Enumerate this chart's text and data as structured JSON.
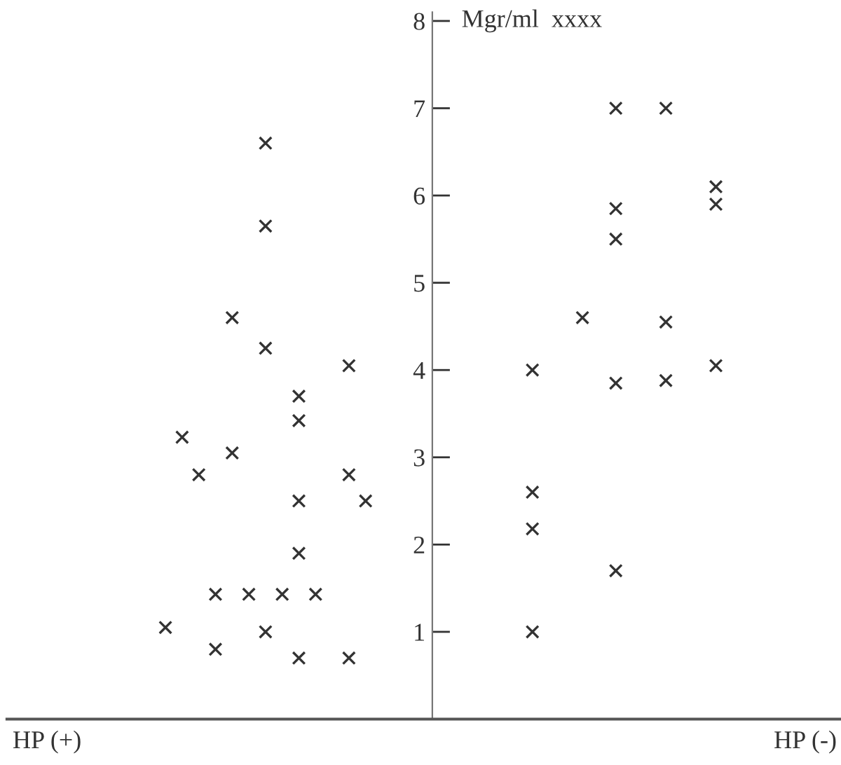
{
  "chart_data": {
    "type": "scatter",
    "ylabel": "Mgr/ml  xxxx",
    "annotations": [
      "HP (+)",
      "HP (-)"
    ],
    "categories": [
      null,
      null,
      null,
      null,
      null,
      null,
      null,
      null,
      null,
      null,
      null,
      null,
      null,
      null,
      null,
      null,
      null,
      null,
      null,
      null,
      null,
      null,
      null,
      null,
      null,
      null,
      null,
      null,
      null,
      null,
      null,
      null,
      null,
      null,
      null,
      null,
      null,
      null,
      null,
      null,
      null,
      null,
      null,
      null,
      null,
      null,
      null,
      null,
      null,
      null
    ],
    "series": [
      {
        "color": "#333333",
        "values": [
          null,
          null,
          null,
          null,
          null,
          null,
          null,
          null,
          null,
          1.05,
          3.23,
          2.8,
          1.43,
          4.6,
          1.43,
          6.6,
          1.43,
          3.7,
          1.43,
          null,
          4.05,
          2.5,
          null,
          null,
          null,
          null,
          null,
          null,
          null,
          null,
          null,
          4.0,
          null,
          null,
          4.6,
          null,
          7.0,
          null,
          null,
          7.0,
          null,
          null,
          6.1,
          null,
          null,
          null,
          null,
          null,
          null,
          null
        ]
      },
      {
        "color": "#333333",
        "values": [
          null,
          null,
          null,
          null,
          null,
          null,
          null,
          null,
          null,
          null,
          null,
          null,
          0.8,
          3.05,
          null,
          5.65,
          null,
          3.42,
          null,
          null,
          2.8,
          null,
          null,
          null,
          null,
          null,
          null,
          null,
          null,
          null,
          null,
          2.6,
          null,
          null,
          null,
          null,
          5.85,
          null,
          null,
          4.55,
          null,
          null,
          5.9,
          null,
          null,
          null,
          null,
          null,
          null,
          null
        ]
      },
      {
        "color": "#333333",
        "values": [
          null,
          null,
          null,
          null,
          null,
          null,
          null,
          null,
          null,
          null,
          null,
          null,
          null,
          null,
          null,
          4.25,
          null,
          2.5,
          null,
          null,
          0.7,
          null,
          null,
          null,
          null,
          null,
          null,
          null,
          null,
          null,
          null,
          2.18,
          null,
          null,
          null,
          null,
          5.5,
          null,
          null,
          3.88,
          null,
          null,
          4.05,
          null,
          null,
          null,
          null,
          null,
          null,
          null
        ]
      },
      {
        "color": "#333333",
        "values": [
          null,
          null,
          null,
          null,
          null,
          null,
          null,
          null,
          null,
          null,
          null,
          null,
          null,
          null,
          null,
          1.0,
          null,
          1.9,
          null,
          null,
          null,
          null,
          null,
          null,
          null,
          null,
          null,
          null,
          null,
          null,
          null,
          1.0,
          null,
          null,
          null,
          null,
          3.85,
          null,
          null,
          null,
          null,
          null,
          null,
          null,
          null,
          null,
          null,
          null,
          null,
          null
        ]
      },
      {
        "color": "#333333",
        "values": [
          null,
          null,
          null,
          null,
          null,
          null,
          null,
          null,
          null,
          null,
          null,
          null,
          null,
          null,
          null,
          null,
          null,
          0.7,
          null,
          null,
          null,
          null,
          null,
          null,
          null,
          null,
          null,
          null,
          null,
          null,
          null,
          null,
          null,
          null,
          null,
          null,
          1.7,
          null,
          null,
          null,
          null,
          null,
          null,
          null,
          null,
          null,
          null,
          null,
          null,
          null
        ]
      }
    ],
    "marker": "cross",
    "ylim": [
      0,
      8.1
    ],
    "yticks": [
      1,
      2,
      3,
      4,
      5,
      6,
      7,
      8
    ],
    "tick_labels": "y",
    "grid": false,
    "legend": false
  }
}
